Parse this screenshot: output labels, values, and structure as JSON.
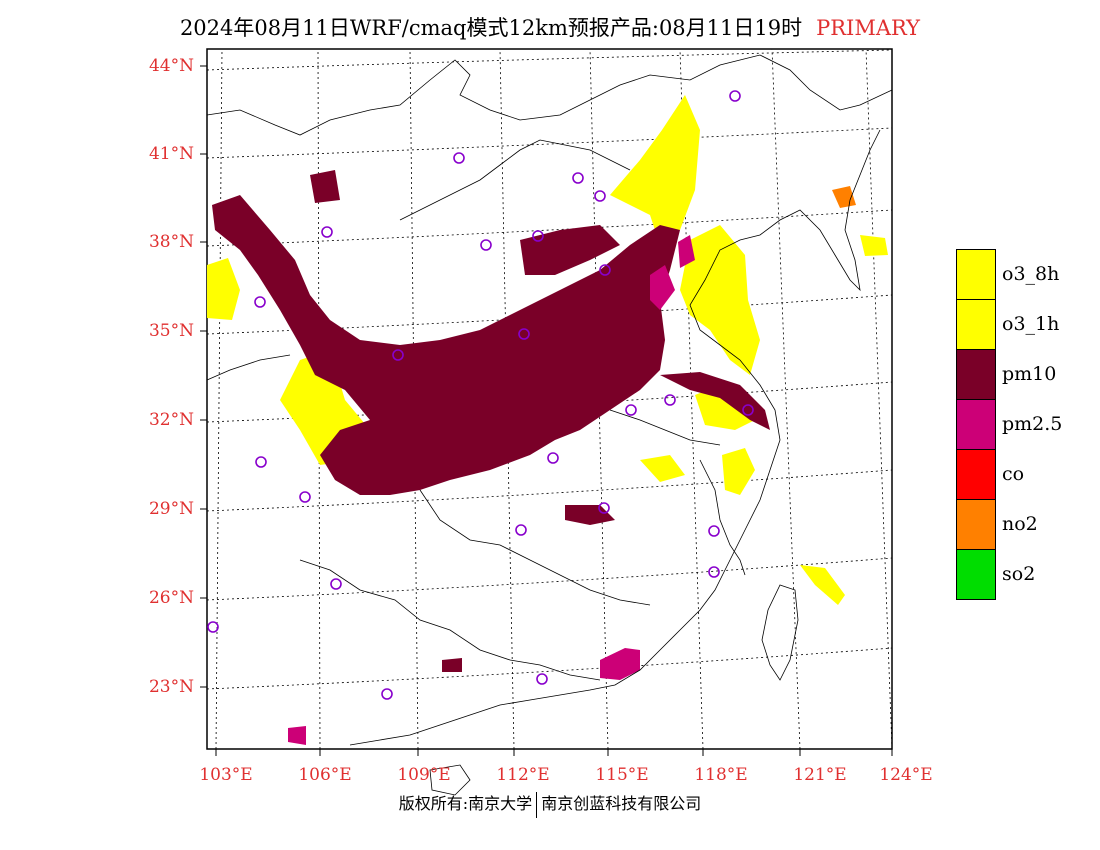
{
  "header": {
    "title": "2024年08月11日WRF/cmaq模式12km预报产品:08月11日19时",
    "tag": "PRIMARY"
  },
  "axes": {
    "lat_labels": [
      "44°N",
      "41°N",
      "38°N",
      "35°N",
      "32°N",
      "29°N",
      "26°N",
      "23°N"
    ],
    "lon_labels": [
      "103°E",
      "106°E",
      "109°E",
      "112°E",
      "115°E",
      "118°E",
      "121°E",
      "124°E"
    ]
  },
  "legend": {
    "items": [
      {
        "label": "o3_8h",
        "color": "#ffff00"
      },
      {
        "label": "o3_1h",
        "color": "#ffff00"
      },
      {
        "label": "pm10",
        "color": "#7a0028"
      },
      {
        "label": "pm2.5",
        "color": "#cc0077"
      },
      {
        "label": "co",
        "color": "#ff0000"
      },
      {
        "label": "no2",
        "color": "#ff8000"
      },
      {
        "label": "so2",
        "color": "#00dd00"
      }
    ]
  },
  "footer": {
    "left": "版权所有:南京大学",
    "right": "南京创蓝科技有限公司"
  },
  "colors": {
    "axis_label": "#e03030",
    "pm10": "#7a0028",
    "pm25": "#cc0077",
    "o3": "#ffff00",
    "no2": "#ff8000",
    "station": "#8800cc"
  }
}
